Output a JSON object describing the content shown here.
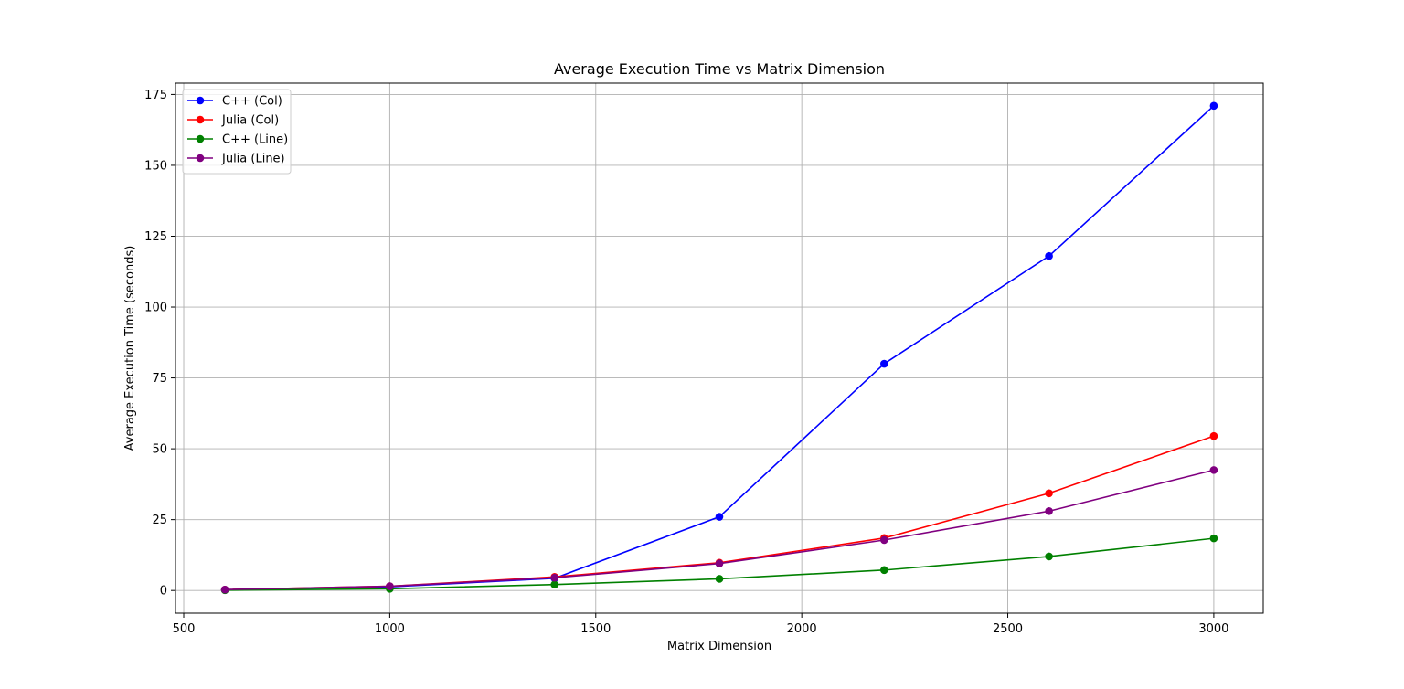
{
  "chart_data": {
    "type": "line",
    "title": "Average Execution Time vs Matrix Dimension",
    "xlabel": "Matrix Dimension",
    "ylabel": "Average Execution Time (seconds)",
    "x": [
      600,
      1000,
      1400,
      1800,
      2200,
      2600,
      3000
    ],
    "xlim": [
      480,
      3120
    ],
    "ylim": [
      -8,
      179
    ],
    "xticks": [
      500,
      1000,
      1500,
      2000,
      2500,
      3000
    ],
    "yticks": [
      0,
      25,
      50,
      75,
      100,
      125,
      150,
      175
    ],
    "grid": true,
    "legend_position": "top-left",
    "series": [
      {
        "name": "C++ (Col)",
        "color": "#0000ff",
        "marker": "circle",
        "values": [
          0.3,
          1.3,
          4.3,
          26.0,
          80.0,
          118.0,
          171.0
        ]
      },
      {
        "name": "Julia (Col)",
        "color": "#ff0000",
        "marker": "circle",
        "values": [
          0.3,
          1.5,
          4.8,
          9.8,
          18.5,
          34.3,
          54.5
        ]
      },
      {
        "name": "C++ (Line)",
        "color": "#008000",
        "marker": "circle",
        "values": [
          0.1,
          0.6,
          2.1,
          4.1,
          7.2,
          12.0,
          18.4
        ]
      },
      {
        "name": "Julia (Line)",
        "color": "#800080",
        "marker": "circle",
        "values": [
          0.3,
          1.5,
          4.5,
          9.5,
          17.8,
          28.0,
          42.5
        ]
      }
    ]
  }
}
